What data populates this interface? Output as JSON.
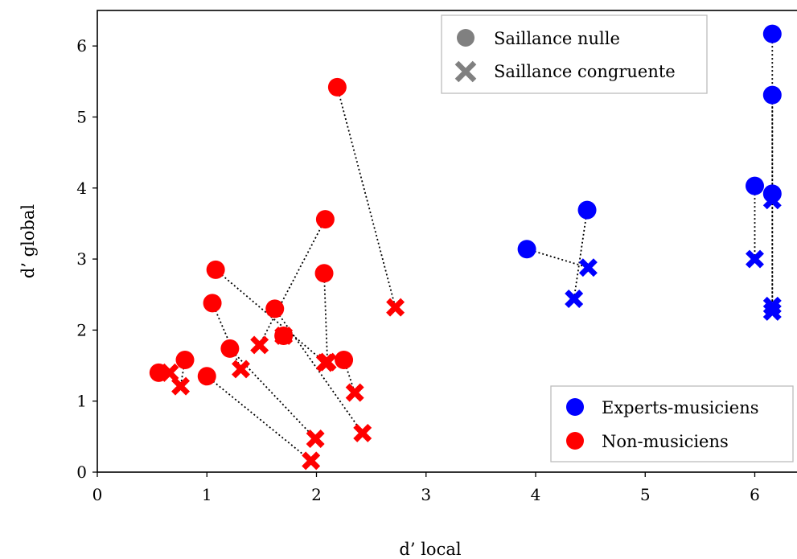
{
  "chart_data": {
    "type": "scatter",
    "xlabel": "d’ local",
    "ylabel": "d’ global",
    "xlim": [
      0,
      6.4
    ],
    "ylim": [
      0,
      6.5
    ],
    "xticks": [
      "0",
      "1",
      "2",
      "3",
      "4",
      "5",
      "6"
    ],
    "yticks": [
      "0",
      "1",
      "2",
      "3",
      "4",
      "5",
      "6"
    ],
    "grid": false,
    "legend_markers": {
      "placement": "top-right",
      "entries": [
        {
          "label": "Saillance nulle",
          "marker": "circle"
        },
        {
          "label": "Saillance congruente",
          "marker": "x"
        }
      ]
    },
    "legend_groups": {
      "placement": "bottom-right",
      "entries": [
        {
          "label": "Experts-musiciens",
          "color": "#0000ff"
        },
        {
          "label": "Non-musiciens",
          "color": "#ff0000"
        }
      ]
    },
    "colors": {
      "experts": "#0000ff",
      "non_musiciens": "#ff0000",
      "legend_marker": "#808080"
    },
    "pairs": [
      {
        "group": "non_musiciens",
        "nulle": [
          0.56,
          1.4
        ],
        "congruente": [
          0.66,
          1.4
        ]
      },
      {
        "group": "non_musiciens",
        "nulle": [
          0.8,
          1.58
        ],
        "congruente": [
          0.76,
          1.21
        ]
      },
      {
        "group": "non_musiciens",
        "nulle": [
          1.0,
          1.35
        ],
        "congruente": [
          1.95,
          0.16
        ]
      },
      {
        "group": "non_musiciens",
        "nulle": [
          1.21,
          1.74
        ],
        "congruente": [
          1.99,
          0.47
        ]
      },
      {
        "group": "non_musiciens",
        "nulle": [
          1.05,
          2.38
        ],
        "congruente": [
          1.31,
          1.45
        ]
      },
      {
        "group": "non_musiciens",
        "nulle": [
          1.08,
          2.85
        ],
        "congruente": [
          2.08,
          1.54
        ]
      },
      {
        "group": "non_musiciens",
        "nulle": [
          1.62,
          2.3
        ],
        "congruente": [
          2.42,
          0.55
        ]
      },
      {
        "group": "non_musiciens",
        "nulle": [
          2.08,
          3.56
        ],
        "congruente": [
          1.48,
          1.79
        ]
      },
      {
        "group": "non_musiciens",
        "nulle": [
          2.07,
          2.8
        ],
        "congruente": [
          2.1,
          1.55
        ]
      },
      {
        "group": "non_musiciens",
        "nulle": [
          2.25,
          1.58
        ],
        "congruente": [
          2.35,
          1.12
        ]
      },
      {
        "group": "non_musiciens",
        "nulle": [
          2.19,
          5.42
        ],
        "congruente": [
          2.72,
          2.32
        ]
      },
      {
        "group": "non_musiciens",
        "nulle": [
          1.7,
          1.92
        ],
        "congruente": [
          1.7,
          1.92
        ]
      },
      {
        "group": "experts",
        "nulle": [
          3.92,
          3.14
        ],
        "congruente": [
          4.48,
          2.88
        ]
      },
      {
        "group": "experts",
        "nulle": [
          4.47,
          3.69
        ],
        "congruente": [
          4.35,
          2.44
        ]
      },
      {
        "group": "experts",
        "nulle": [
          6.0,
          4.03
        ],
        "congruente": [
          6.0,
          3.0
        ]
      },
      {
        "group": "experts",
        "nulle": [
          6.16,
          3.92
        ],
        "congruente": [
          6.16,
          3.83
        ]
      },
      {
        "group": "experts",
        "nulle": [
          6.16,
          5.31
        ],
        "congruente": [
          6.16,
          2.26
        ]
      },
      {
        "group": "experts",
        "nulle": [
          6.16,
          6.17
        ],
        "congruente": [
          6.16,
          2.34
        ]
      }
    ]
  }
}
